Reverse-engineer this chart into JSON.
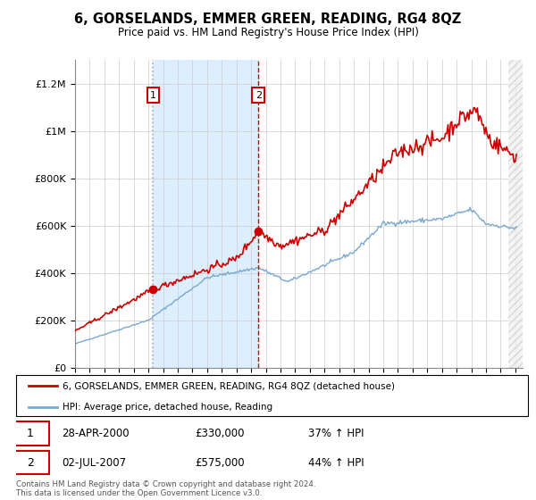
{
  "title": "6, GORSELANDS, EMMER GREEN, READING, RG4 8QZ",
  "subtitle": "Price paid vs. HM Land Registry's House Price Index (HPI)",
  "legend_line1": "6, GORSELANDS, EMMER GREEN, READING, RG4 8QZ (detached house)",
  "legend_line2": "HPI: Average price, detached house, Reading",
  "sale1_date": "28-APR-2000",
  "sale1_price": 330000,
  "sale1_label": "37% ↑ HPI",
  "sale1_year": 2000.32,
  "sale2_date": "02-JUL-2007",
  "sale2_price": 575000,
  "sale2_label": "44% ↑ HPI",
  "sale2_year": 2007.5,
  "footer": "Contains HM Land Registry data © Crown copyright and database right 2024.\nThis data is licensed under the Open Government Licence v3.0.",
  "red_color": "#cc0000",
  "blue_color": "#7aa8d2",
  "shade_color": "#ddeeff",
  "ylim": [
    0,
    1300000
  ],
  "xlim_start": 1995,
  "xlim_end": 2025.5
}
